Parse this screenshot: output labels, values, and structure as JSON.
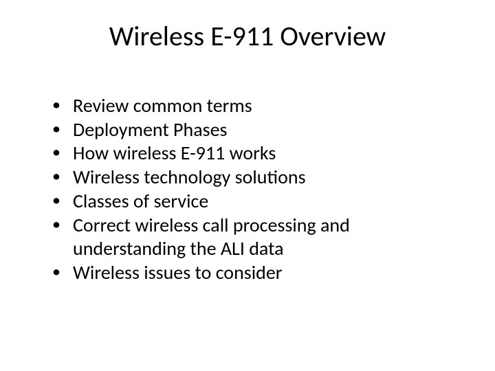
{
  "slide": {
    "title": "Wireless E-911 Overview",
    "bullets": [
      "Review common terms",
      "Deployment Phases",
      "How wireless E-911 works",
      "Wireless technology solutions",
      "Classes of service",
      "Correct wireless call processing and understanding the ALI data",
      "Wireless issues to consider"
    ],
    "title_fontsize": 40,
    "body_fontsize": 28,
    "text_color": "#000000",
    "background_color": "#ffffff"
  }
}
